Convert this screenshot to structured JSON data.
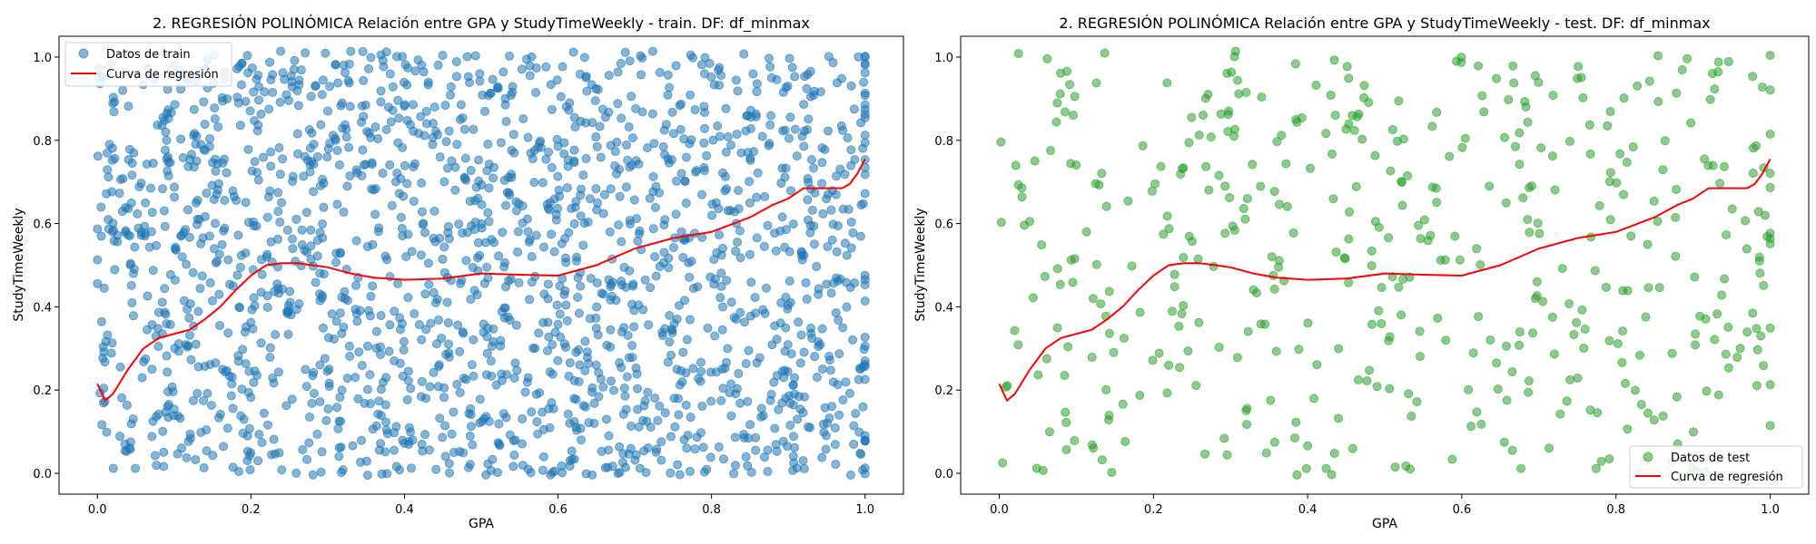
{
  "chart_data": [
    {
      "type": "scatter",
      "title": "2. REGRESIÓN POLINÓMICA Relación entre GPA y StudyTimeWeekly - train. DF: df_minmax",
      "xlabel": "GPA",
      "ylabel": "StudyTimeWeekly",
      "xlim": [
        -0.05,
        1.05
      ],
      "ylim": [
        -0.05,
        1.05
      ],
      "xticks": [
        0.0,
        0.2,
        0.4,
        0.6,
        0.8,
        1.0
      ],
      "yticks": [
        0.0,
        0.2,
        0.4,
        0.6,
        0.8,
        1.0
      ],
      "grid": false,
      "legend_position": "upper-left",
      "point_count_estimate": 1900,
      "series": [
        {
          "name": "Datos de train",
          "kind": "scatter",
          "color": "#1f77b4",
          "alpha": 0.55,
          "points": []
        },
        {
          "name": "Curva de regresión",
          "kind": "line",
          "color": "#ff0000",
          "x": [
            0.0,
            0.01,
            0.02,
            0.04,
            0.06,
            0.08,
            0.1,
            0.12,
            0.14,
            0.16,
            0.18,
            0.2,
            0.22,
            0.24,
            0.26,
            0.28,
            0.3,
            0.33,
            0.36,
            0.4,
            0.45,
            0.5,
            0.55,
            0.6,
            0.65,
            0.7,
            0.75,
            0.8,
            0.85,
            0.88,
            0.9,
            0.92,
            0.95,
            0.97,
            0.98,
            0.99,
            1.0
          ],
          "y": [
            0.215,
            0.175,
            0.19,
            0.25,
            0.3,
            0.325,
            0.335,
            0.345,
            0.37,
            0.4,
            0.44,
            0.475,
            0.5,
            0.505,
            0.505,
            0.5,
            0.495,
            0.48,
            0.47,
            0.465,
            0.468,
            0.48,
            0.477,
            0.475,
            0.5,
            0.54,
            0.565,
            0.58,
            0.615,
            0.645,
            0.66,
            0.685,
            0.685,
            0.685,
            0.695,
            0.72,
            0.755
          ]
        }
      ]
    },
    {
      "type": "scatter",
      "title": "2. REGRESIÓN POLINÓMICA Relación entre GPA y StudyTimeWeekly - test. DF: df_minmax",
      "xlabel": "GPA",
      "ylabel": "StudyTimeWeekly",
      "xlim": [
        -0.05,
        1.05
      ],
      "ylim": [
        -0.05,
        1.05
      ],
      "xticks": [
        0.0,
        0.2,
        0.4,
        0.6,
        0.8,
        1.0
      ],
      "yticks": [
        0.0,
        0.2,
        0.4,
        0.6,
        0.8,
        1.0
      ],
      "grid": false,
      "legend_position": "lower-right",
      "point_count_estimate": 480,
      "series": [
        {
          "name": "Datos de test",
          "kind": "scatter",
          "color": "#2ca02c",
          "alpha": 0.55,
          "points": []
        },
        {
          "name": "Curva de regresión",
          "kind": "line",
          "color": "#ff0000",
          "x": [
            0.0,
            0.01,
            0.02,
            0.04,
            0.06,
            0.08,
            0.1,
            0.12,
            0.14,
            0.16,
            0.18,
            0.2,
            0.22,
            0.24,
            0.26,
            0.28,
            0.3,
            0.33,
            0.36,
            0.4,
            0.45,
            0.5,
            0.55,
            0.6,
            0.65,
            0.7,
            0.75,
            0.8,
            0.85,
            0.88,
            0.9,
            0.92,
            0.95,
            0.97,
            0.98,
            0.99,
            1.0
          ],
          "y": [
            0.215,
            0.175,
            0.19,
            0.25,
            0.3,
            0.325,
            0.335,
            0.345,
            0.37,
            0.4,
            0.44,
            0.475,
            0.5,
            0.505,
            0.505,
            0.5,
            0.495,
            0.48,
            0.47,
            0.465,
            0.468,
            0.48,
            0.477,
            0.475,
            0.5,
            0.54,
            0.565,
            0.58,
            0.615,
            0.645,
            0.66,
            0.685,
            0.685,
            0.685,
            0.695,
            0.72,
            0.755
          ]
        }
      ]
    }
  ]
}
